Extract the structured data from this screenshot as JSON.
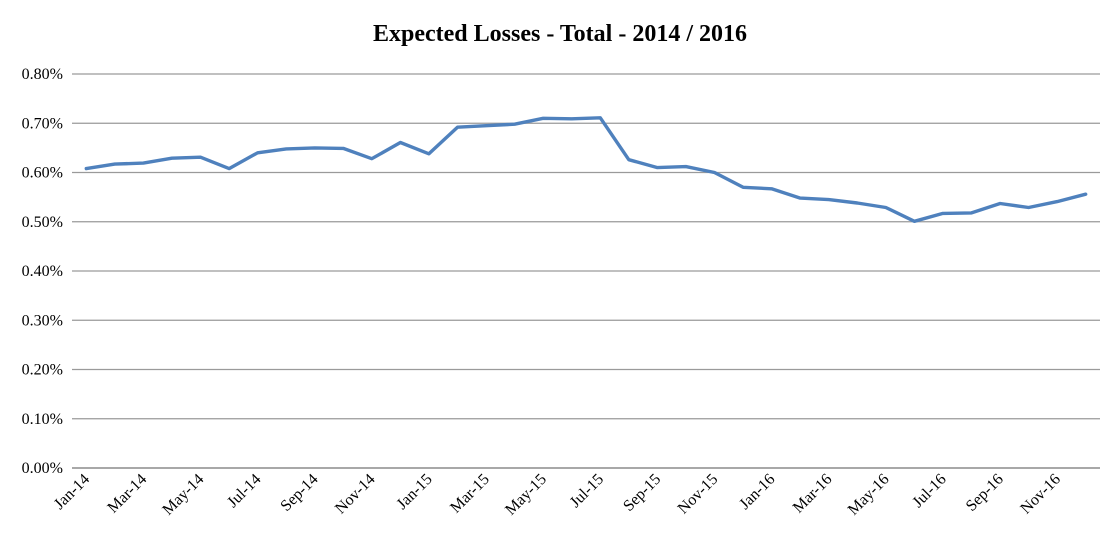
{
  "header": {
    "title": "Expected Losses - Total - 2014 / 2016"
  },
  "chart_data": {
    "type": "line",
    "title": "Expected Losses - Total - 2014 / 2016",
    "x": [
      "Jan-14",
      "Feb-14",
      "Mar-14",
      "Apr-14",
      "May-14",
      "Jun-14",
      "Jul-14",
      "Aug-14",
      "Sep-14",
      "Oct-14",
      "Nov-14",
      "Dec-14",
      "Jan-15",
      "Feb-15",
      "Mar-15",
      "Apr-15",
      "May-15",
      "Jun-15",
      "Jul-15",
      "Aug-15",
      "Sep-15",
      "Oct-15",
      "Nov-15",
      "Dec-15",
      "Jan-16",
      "Feb-16",
      "Mar-16",
      "Apr-16",
      "May-16",
      "Jun-16",
      "Jul-16",
      "Aug-16",
      "Sep-16",
      "Oct-16",
      "Nov-16",
      "Dec-16"
    ],
    "values": [
      0.608,
      0.617,
      0.619,
      0.629,
      0.631,
      0.608,
      0.64,
      0.648,
      0.65,
      0.649,
      0.628,
      0.661,
      0.638,
      0.692,
      0.695,
      0.698,
      0.71,
      0.709,
      0.711,
      0.626,
      0.61,
      0.612,
      0.6,
      0.57,
      0.567,
      0.548,
      0.545,
      0.538,
      0.529,
      0.501,
      0.517,
      0.518,
      0.537,
      0.529,
      0.541,
      0.556
    ],
    "values_unit": "%",
    "visible_x_tick_labels": [
      "Jan-14",
      "Mar-14",
      "May-14",
      "Jul-14",
      "Sep-14",
      "Nov-14",
      "Jan-15",
      "Mar-15",
      "May-15",
      "Jul-15",
      "Sep-15",
      "Nov-15",
      "Jan-16",
      "Mar-16",
      "May-16",
      "Jul-16",
      "Sep-16",
      "Nov-16"
    ],
    "y_tick_labels": [
      "0.00%",
      "0.10%",
      "0.20%",
      "0.30%",
      "0.40%",
      "0.50%",
      "0.60%",
      "0.70%",
      "0.80%"
    ],
    "ylim": [
      0,
      0.8
    ],
    "y_tick_step": 0.1,
    "xlabel": "",
    "ylabel": "",
    "grid": true,
    "legend": "none",
    "line_color": "#4F81BD",
    "gridline_color": "#9a9a9a",
    "axis_color": "#8c8c8c",
    "background": "#ffffff",
    "text_color": "#000000"
  }
}
